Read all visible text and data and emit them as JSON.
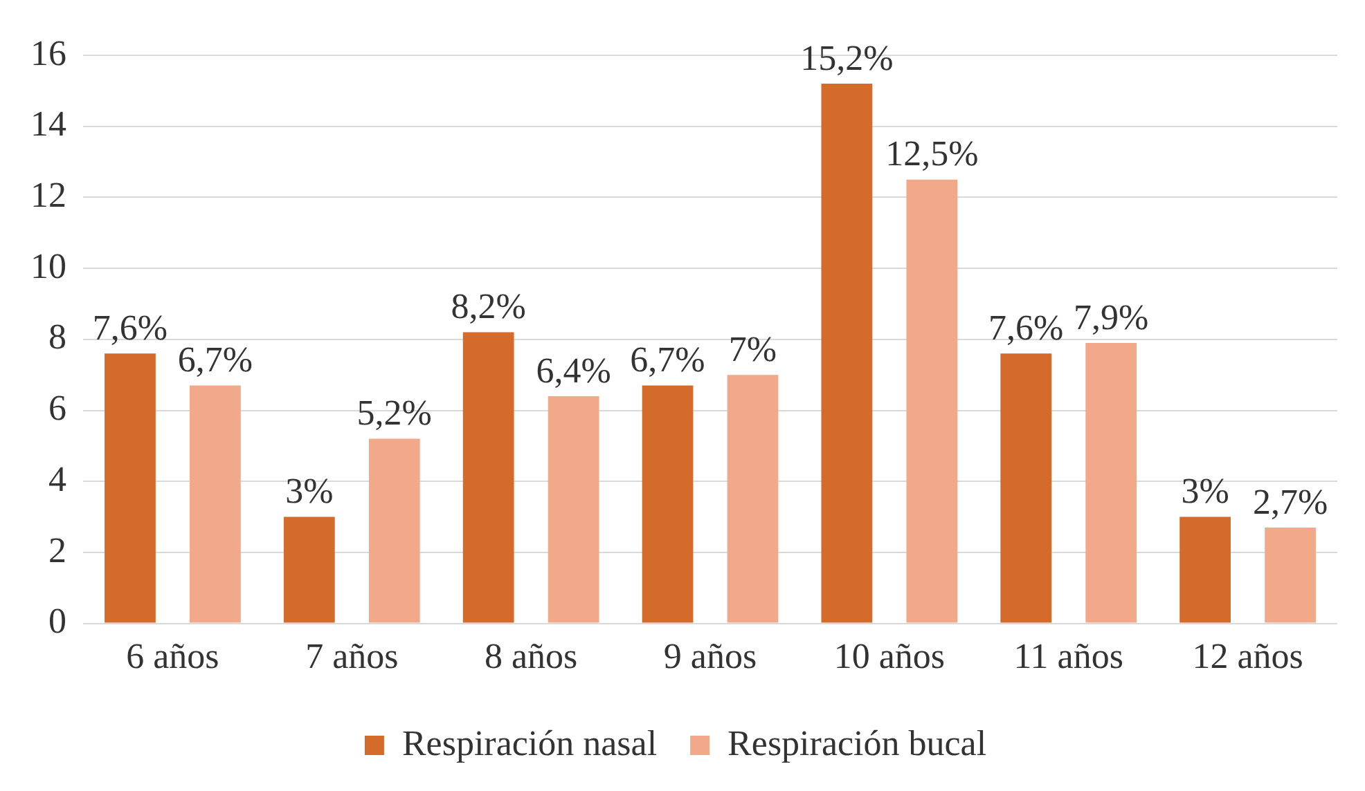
{
  "chart_data": {
    "type": "bar",
    "categories": [
      "6 años",
      "7 años",
      "8 años",
      "9 años",
      "10 años",
      "11 años",
      "12 años"
    ],
    "series": [
      {
        "name": "Respiración nasal",
        "color": "#d46b2a",
        "values": [
          7.6,
          3,
          8.2,
          6.7,
          15.2,
          7.6,
          3
        ],
        "value_labels": [
          "7,6%",
          "3%",
          "8,2%",
          "6,7%",
          "15,2%",
          "7,6%",
          "3%"
        ]
      },
      {
        "name": "Respiración bucal",
        "color": "#f2a98a",
        "values": [
          6.7,
          5.2,
          6.4,
          7,
          12.5,
          7.9,
          2.7
        ],
        "value_labels": [
          "6,7%",
          "5,2%",
          "6,4%",
          "7%",
          "12,5%",
          "7,9%",
          "2,7%"
        ]
      }
    ],
    "ylim": [
      0,
      16
    ],
    "yticks": [
      0,
      2,
      4,
      6,
      8,
      10,
      12,
      14,
      16
    ],
    "grid": "y",
    "legend": "bottom"
  }
}
